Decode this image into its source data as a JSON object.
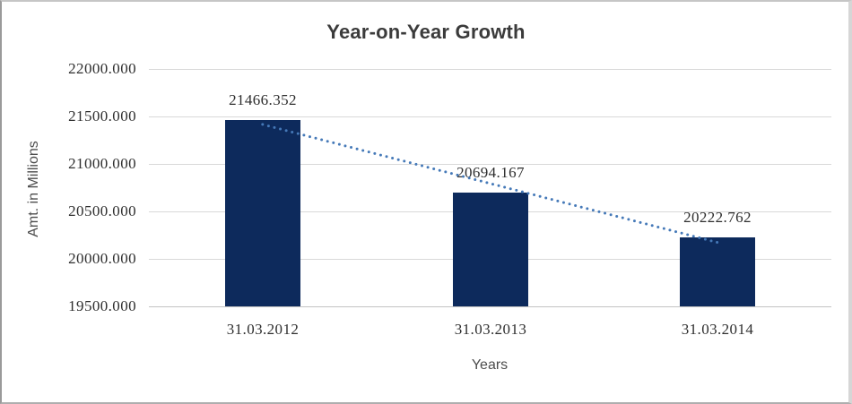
{
  "chart_data": {
    "type": "bar",
    "title": "Year-on-Year Growth",
    "categories": [
      "31.03.2012",
      "31.03.2013",
      "31.03.2014"
    ],
    "values": [
      21466.352,
      20694.167,
      20222.762
    ],
    "data_labels": [
      "21466.352",
      "20694.167",
      "20222.762"
    ],
    "xlabel": "Years",
    "ylabel": "Amt. in Millions",
    "ylim": [
      19500,
      22000
    ],
    "ytick_step": 500,
    "yticks": [
      "22000.000",
      "21500.000",
      "21000.000",
      "20500.000",
      "20000.000",
      "19500.000"
    ],
    "grid": true,
    "legend": "none",
    "trendline": {
      "type": "linear",
      "style": "dotted",
      "color": "#4579b8"
    },
    "colors": {
      "bar": "#0d2a5c",
      "gridline": "#d9d9d9",
      "axis_line": "#c3c3c3",
      "title": "#3b3b3b",
      "tick_label": "#2e2e2e",
      "axis_title": "#4d4d4d",
      "frame_border": "#9a9a9a"
    }
  }
}
